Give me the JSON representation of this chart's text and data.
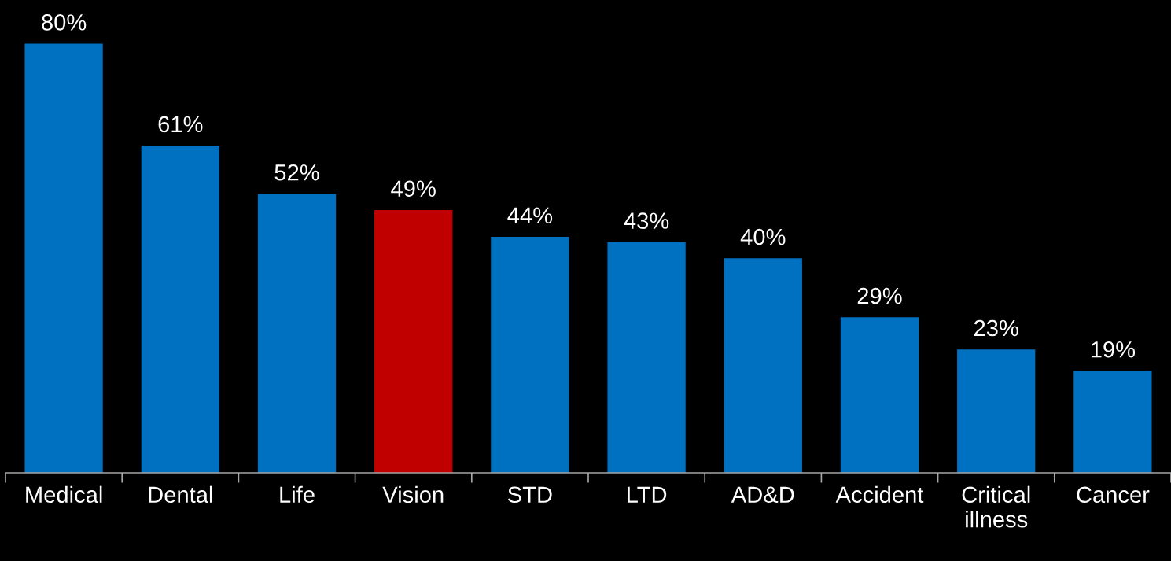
{
  "chart_data": {
    "type": "bar",
    "categories": [
      "Medical",
      "Dental",
      "Life",
      "Vision",
      "STD",
      "LTD",
      "AD&D",
      "Accident",
      "Critical\nillness",
      "Cancer"
    ],
    "values": [
      80,
      61,
      52,
      49,
      44,
      43,
      40,
      29,
      23,
      19
    ],
    "value_labels": [
      "80%",
      "61%",
      "52%",
      "49%",
      "44%",
      "43%",
      "40%",
      "29%",
      "23%",
      "19%"
    ],
    "colors": [
      "#0070c0",
      "#0070c0",
      "#0070c0",
      "#c00000",
      "#0070c0",
      "#0070c0",
      "#0070c0",
      "#0070c0",
      "#0070c0",
      "#0070c0"
    ],
    "ylim": [
      0,
      88
    ],
    "tick_labels": "x",
    "grid": false,
    "legend": false
  }
}
